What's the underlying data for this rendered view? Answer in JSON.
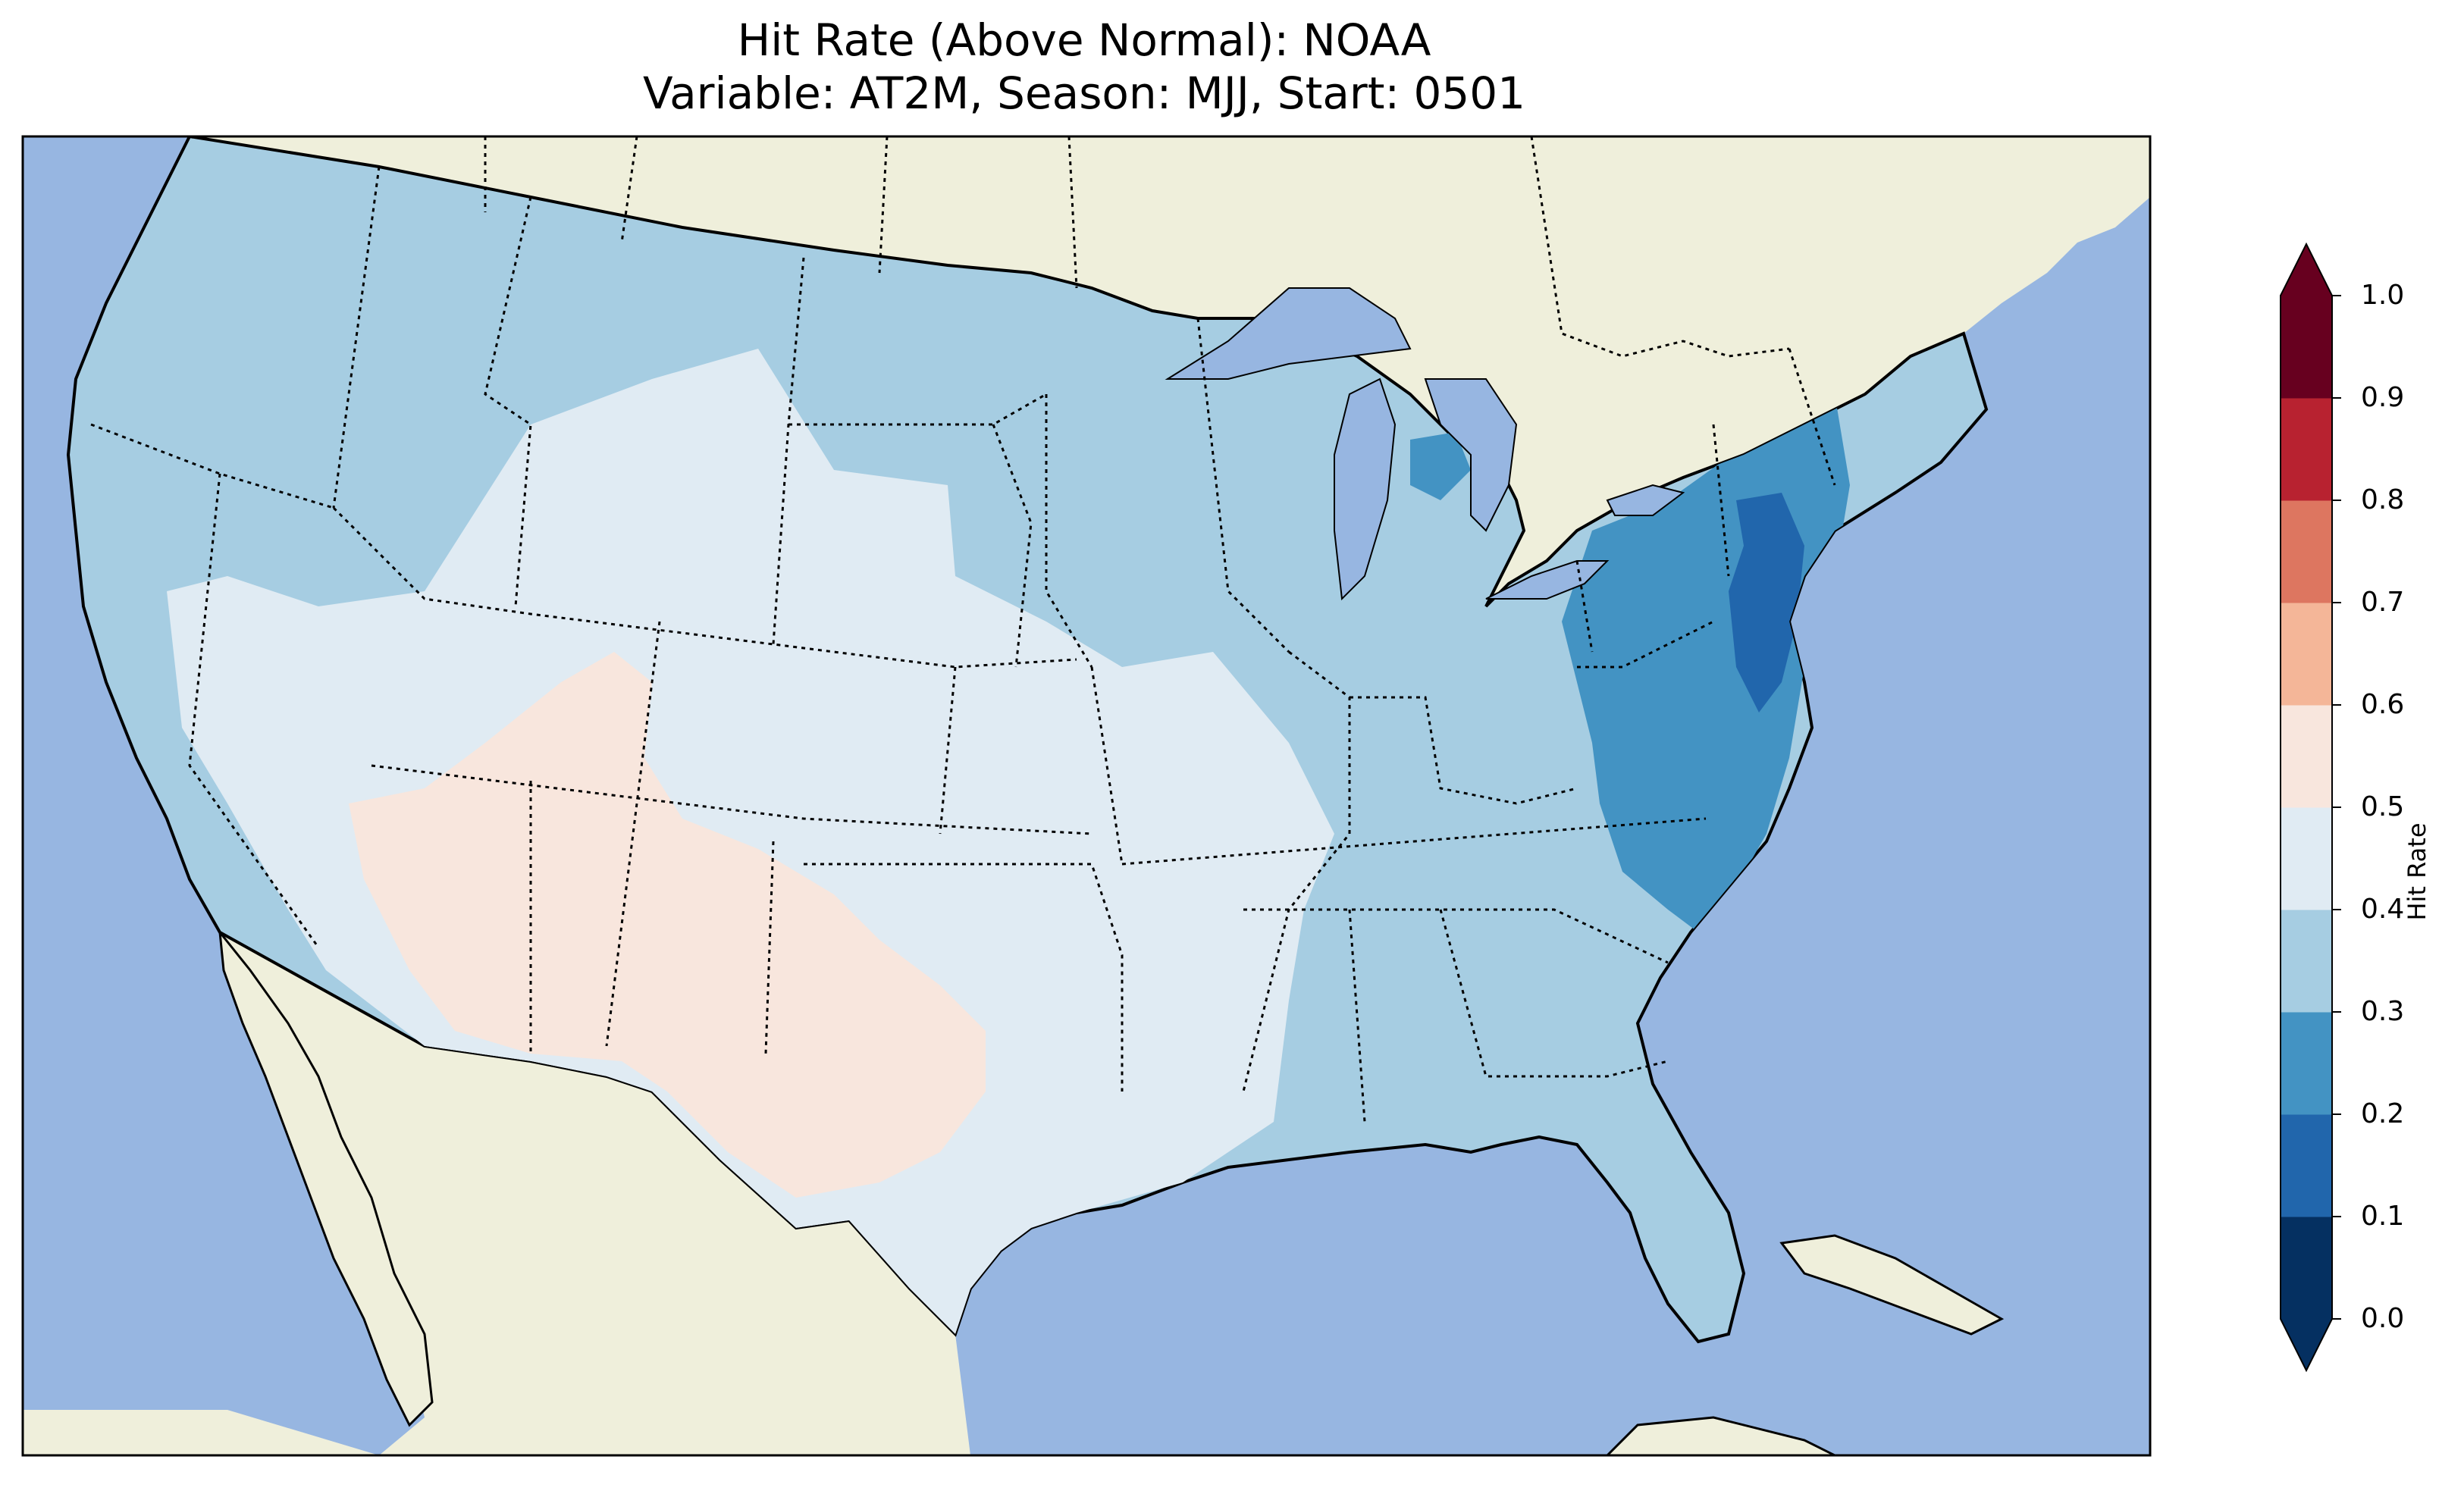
{
  "title": {
    "line1": "Hit Rate (Above Normal): NOAA",
    "line2": "Variable: AT2M, Season: MJJ, Start: 0501"
  },
  "colorbar": {
    "label": "Hit Rate",
    "ticks": [
      "0.0",
      "0.1",
      "0.2",
      "0.3",
      "0.4",
      "0.5",
      "0.6",
      "0.7",
      "0.8",
      "0.9",
      "1.0"
    ],
    "bins": [
      {
        "range": [
          0.0,
          0.1
        ],
        "color": "#053061"
      },
      {
        "range": [
          0.1,
          0.2
        ],
        "color": "#2166ac"
      },
      {
        "range": [
          0.2,
          0.3
        ],
        "color": "#4393c3"
      },
      {
        "range": [
          0.3,
          0.4
        ],
        "color": "#a6cde2"
      },
      {
        "range": [
          0.4,
          0.5
        ],
        "color": "#e0ebf3"
      },
      {
        "range": [
          0.5,
          0.6
        ],
        "color": "#f8e6dd"
      },
      {
        "range": [
          0.6,
          0.7
        ],
        "color": "#f4b698"
      },
      {
        "range": [
          0.7,
          0.8
        ],
        "color": "#dd7660"
      },
      {
        "range": [
          0.8,
          0.9
        ],
        "color": "#b82230"
      },
      {
        "range": [
          0.9,
          1.0
        ],
        "color": "#67001f"
      }
    ],
    "extend": "both"
  },
  "map": {
    "projection": "Lambert Conformal (CONUS)",
    "ocean_color": "#97b6e1",
    "land_color": "#efefdb",
    "regions": [
      {
        "name": "Pacific Northwest",
        "hit_rate_bin": "0.3-0.4"
      },
      {
        "name": "Northern Rockies",
        "hit_rate_bin": "0.3-0.4"
      },
      {
        "name": "California",
        "hit_rate_bin": "0.3-0.4"
      },
      {
        "name": "Great Basin / Central Rockies",
        "hit_rate_bin": "0.4-0.5"
      },
      {
        "name": "Southwest (AZ / NM / W Texas)",
        "hit_rate_bin": "0.5-0.6"
      },
      {
        "name": "Southern & Central Plains",
        "hit_rate_bin": "0.4-0.5"
      },
      {
        "name": "Northern Plains",
        "hit_rate_bin": "0.3-0.4"
      },
      {
        "name": "Midwest / Great Lakes",
        "hit_rate_bin": "0.3-0.4"
      },
      {
        "name": "Southeast",
        "hit_rate_bin": "0.3-0.4"
      },
      {
        "name": "Mid-Atlantic / Carolinas",
        "hit_rate_bin": "0.2-0.3"
      },
      {
        "name": "New Jersey / Delaware coast",
        "hit_rate_bin": "0.1-0.2"
      },
      {
        "name": "New England",
        "hit_rate_bin": "0.3-0.4"
      },
      {
        "name": "Florida",
        "hit_rate_bin": "0.3-0.4"
      }
    ]
  }
}
